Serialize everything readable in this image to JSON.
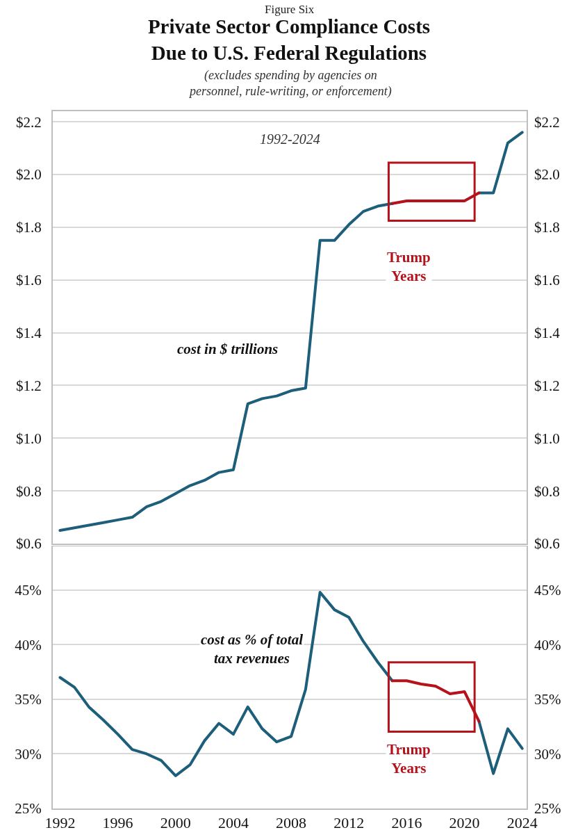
{
  "chart_data": [
    {
      "type": "line",
      "title": "Private Sector Compliance Costs Due to U.S. Federal Regulations",
      "subtitle": "(excludes spending by agencies on personnel, rule-writing, or enforcement)",
      "annotations": [
        "Figure Six",
        "1992-2024",
        "cost in $ trillions",
        "Trump Years"
      ],
      "x": [
        1992,
        1993,
        1994,
        1995,
        1996,
        1997,
        1998,
        1999,
        2000,
        2001,
        2002,
        2003,
        2004,
        2005,
        2006,
        2007,
        2008,
        2009,
        2010,
        2011,
        2012,
        2013,
        2014,
        2015,
        2016,
        2017,
        2018,
        2019,
        2020,
        2021,
        2022,
        2023,
        2024
      ],
      "series": [
        {
          "color": "#1d5e7a",
          "values": [
            0.65,
            0.66,
            0.67,
            0.68,
            0.69,
            0.7,
            0.74,
            0.76,
            0.79,
            0.82,
            0.84,
            0.87,
            0.88,
            1.13,
            1.15,
            1.16,
            1.18,
            1.19,
            1.75,
            1.75,
            1.81,
            1.86,
            1.88,
            1.89,
            null,
            null,
            null,
            null,
            null,
            1.93,
            1.93,
            2.12,
            2.16
          ]
        },
        {
          "color": "#b5121b",
          "x": [
            2015,
            2016,
            2017,
            2018,
            2019,
            2020,
            2021
          ],
          "values": [
            1.89,
            1.9,
            1.9,
            1.9,
            1.9,
            1.9,
            1.93
          ]
        }
      ],
      "xlim": [
        1991.5,
        2024.3
      ],
      "xticks": [
        1992,
        1996,
        2000,
        2004,
        2008,
        2012,
        2016,
        2020,
        2024
      ],
      "ylim": [
        0.6,
        2.24
      ],
      "yticks": [
        {
          "value": 0.6,
          "label": "$0.6"
        },
        {
          "value": 0.8,
          "label": "$0.8"
        },
        {
          "value": 1.0,
          "label": "$1.0"
        },
        {
          "value": 1.2,
          "label": "$1.2"
        },
        {
          "value": 1.4,
          "label": "$1.4"
        },
        {
          "value": 1.6,
          "label": "$1.6"
        },
        {
          "value": 1.8,
          "label": "$1.8"
        },
        {
          "value": 2.0,
          "label": "$2.0"
        },
        {
          "value": 2.2,
          "label": "$2.2"
        }
      ],
      "y2lim": [
        0.6,
        2.24
      ],
      "y2ticks": [
        {
          "value": 0.6,
          "label": "$0.6"
        },
        {
          "value": 0.8,
          "label": "$0.8"
        },
        {
          "value": 1.0,
          "label": "$1.0"
        },
        {
          "value": 1.2,
          "label": "$1.2"
        },
        {
          "value": 1.4,
          "label": "$1.4"
        },
        {
          "value": 1.6,
          "label": "$1.6"
        },
        {
          "value": 1.8,
          "label": "$1.8"
        },
        {
          "value": 2.0,
          "label": "$2.0"
        },
        {
          "value": 2.2,
          "label": "$2.2"
        }
      ],
      "tick_labels": "y",
      "grid": "y",
      "marker": "none",
      "line_style": "solid"
    },
    {
      "type": "line",
      "annotations": [
        "cost as % of total tax revenues",
        "Trump Years"
      ],
      "x": [
        1992,
        1993,
        1994,
        1995,
        1996,
        1997,
        1998,
        1999,
        2000,
        2001,
        2002,
        2003,
        2004,
        2005,
        2006,
        2007,
        2008,
        2009,
        2010,
        2011,
        2012,
        2013,
        2014,
        2015,
        2016,
        2017,
        2018,
        2019,
        2020,
        2021,
        2022,
        2023,
        2024
      ],
      "series": [
        {
          "color": "#1d5e7a",
          "values": [
            37.0,
            36.1,
            34.3,
            33.1,
            31.8,
            30.4,
            30.0,
            29.4,
            28.0,
            29.0,
            31.2,
            32.8,
            31.8,
            34.3,
            32.3,
            31.1,
            31.6,
            35.9,
            44.8,
            43.2,
            42.5,
            40.3,
            38.4,
            36.7,
            null,
            null,
            null,
            null,
            null,
            33.0,
            28.2,
            32.3,
            30.5
          ]
        },
        {
          "color": "#b5121b",
          "x": [
            2015,
            2016,
            2017,
            2018,
            2019,
            2020,
            2021
          ],
          "values": [
            36.7,
            36.7,
            36.4,
            36.2,
            35.5,
            35.7,
            33.0
          ]
        }
      ],
      "xlim": [
        1991.5,
        2024.3
      ],
      "xticks": [
        1992,
        1996,
        2000,
        2004,
        2008,
        2012,
        2016,
        2020,
        2024
      ],
      "ylim": [
        25,
        49
      ],
      "yticks": [
        {
          "value": 25,
          "label": "25%"
        },
        {
          "value": 30,
          "label": "30%"
        },
        {
          "value": 35,
          "label": "35%"
        },
        {
          "value": 40,
          "label": "40%"
        },
        {
          "value": 45,
          "label": "45%"
        }
      ],
      "y2lim": [
        25,
        49
      ],
      "y2ticks": [
        {
          "value": 25,
          "label": "25%"
        },
        {
          "value": 30,
          "label": "30%"
        },
        {
          "value": 35,
          "label": "35%"
        },
        {
          "value": 40,
          "label": "40%"
        },
        {
          "value": 45,
          "label": "45%"
        }
      ],
      "grid": "y",
      "marker": "none",
      "line_style": "solid"
    }
  ]
}
